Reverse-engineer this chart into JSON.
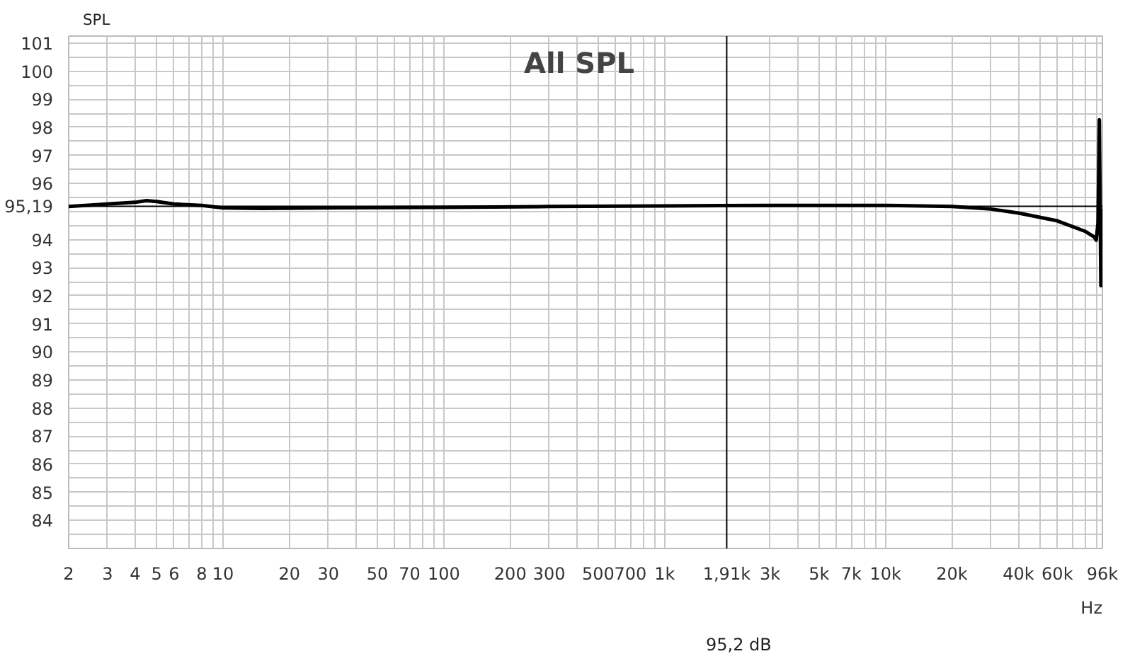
{
  "chart_data": {
    "type": "line",
    "title": "All SPL",
    "ylabel": "SPL",
    "xlabel": "Hz",
    "x": [
      2,
      3,
      4,
      4.5,
      5,
      6,
      8,
      10,
      15,
      30,
      100,
      300,
      1000,
      3000,
      10000,
      20000,
      30000,
      40000,
      60000,
      80000,
      88000,
      90000,
      91700,
      93000,
      94500,
      96000
    ],
    "series": [
      {
        "color": "#000000",
        "values": [
          95.18,
          95.27,
          95.33,
          95.39,
          95.36,
          95.27,
          95.22,
          95.13,
          95.11,
          95.13,
          95.15,
          95.18,
          95.2,
          95.22,
          95.22,
          95.18,
          95.09,
          94.95,
          94.67,
          94.3,
          94.1,
          93.98,
          94.6,
          98.27,
          92.36,
          95.1
        ]
      }
    ],
    "log": "x",
    "xlim": [
      2,
      96000
    ],
    "ylim": [
      83,
      101.25
    ],
    "xticks": [
      2,
      3,
      4,
      5,
      6,
      {
        "value": 7,
        "label": null
      },
      8,
      {
        "value": 9,
        "label": null
      },
      10,
      20,
      30,
      {
        "value": 40,
        "label": null
      },
      50,
      {
        "value": 60,
        "label": null
      },
      70,
      {
        "value": 80,
        "label": null
      },
      {
        "value": 90,
        "label": null
      },
      100,
      200,
      300,
      {
        "value": 400,
        "label": null
      },
      500,
      {
        "value": 600,
        "label": null
      },
      700,
      {
        "value": 800,
        "label": null
      },
      {
        "value": 900,
        "label": null
      },
      {
        "value": 1000,
        "label": "1k"
      },
      {
        "value": 3000,
        "label": "3k"
      },
      {
        "value": 4000,
        "label": null
      },
      {
        "value": 5000,
        "label": "5k"
      },
      {
        "value": 6000,
        "label": null
      },
      {
        "value": 7000,
        "label": "7k"
      },
      {
        "value": 8000,
        "label": null
      },
      {
        "value": 9000,
        "label": null
      },
      {
        "value": 10000,
        "label": "10k"
      },
      {
        "value": 20000,
        "label": "20k"
      },
      {
        "value": 30000,
        "label": null
      },
      {
        "value": 40000,
        "label": "40k"
      },
      {
        "value": 50000,
        "label": null
      },
      {
        "value": 60000,
        "label": "60k"
      },
      {
        "value": 70000,
        "label": null
      },
      {
        "value": 80000,
        "label": null
      },
      {
        "value": 90000,
        "label": null
      },
      {
        "value": 96000,
        "label": "96k"
      }
    ],
    "yticks": [
      {
        "value": 83.5,
        "label": null
      },
      84,
      {
        "value": 84.5,
        "label": null
      },
      85,
      {
        "value": 85.5,
        "label": null
      },
      86,
      {
        "value": 86.5,
        "label": null
      },
      87,
      {
        "value": 87.5,
        "label": null
      },
      88,
      {
        "value": 88.5,
        "label": null
      },
      89,
      {
        "value": 89.5,
        "label": null
      },
      90,
      {
        "value": 90.5,
        "label": null
      },
      91,
      {
        "value": 91.5,
        "label": null
      },
      92,
      {
        "value": 92.5,
        "label": null
      },
      93,
      {
        "value": 93.5,
        "label": null
      },
      94,
      {
        "value": 94.5,
        "label": null
      },
      {
        "value": 95,
        "label": null
      },
      {
        "value": 95.5,
        "label": null
      },
      96,
      {
        "value": 96.5,
        "label": null
      },
      97,
      {
        "value": 97.5,
        "label": null
      },
      98,
      {
        "value": 98.5,
        "label": null
      },
      99,
      {
        "value": 99.5,
        "label": null
      },
      100,
      {
        "value": 100.5,
        "label": null
      },
      101
    ],
    "grid": true,
    "ref_lines": [
      {
        "axis": "x",
        "value": 1910,
        "label": "1,91k",
        "color": "#000000"
      },
      {
        "axis": "y",
        "value": 95.19,
        "label": "95,19",
        "color": "#000000"
      }
    ],
    "annotations": [
      "95,2 dB"
    ]
  }
}
